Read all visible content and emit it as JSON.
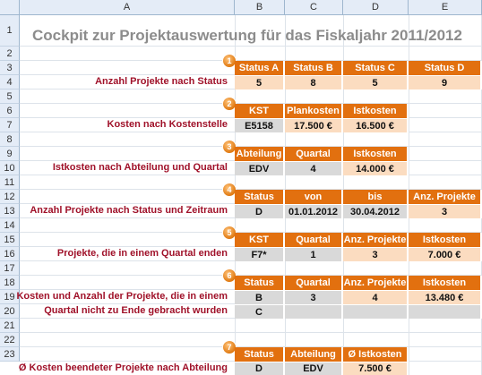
{
  "columns": [
    "A",
    "B",
    "C",
    "D",
    "E"
  ],
  "rows": [
    "1",
    "2",
    "3",
    "4",
    "5",
    "6",
    "7",
    "8",
    "9",
    "10",
    "11",
    "12",
    "13",
    "14",
    "15",
    "16",
    "17",
    "18",
    "19",
    "20",
    "21",
    "22",
    "23"
  ],
  "title": "Cockpit zur Projektauswertung für das Fiskaljahr 2011/2012",
  "sections": [
    {
      "badge": "1",
      "label": "Anzahl  Projekte nach Status",
      "headers": [
        "Status A",
        "Status B",
        "Status C",
        "Status D"
      ],
      "values": [
        "5",
        "8",
        "5",
        "9"
      ]
    },
    {
      "badge": "2",
      "label": "Kosten nach Kostenstelle",
      "headers": [
        "KST",
        "Plankosten",
        "Istkosten"
      ],
      "values": [
        "E5158",
        "17.500 €",
        "16.500 €"
      ]
    },
    {
      "badge": "3",
      "label": "Istkosten nach Abteilung und Quartal",
      "headers": [
        "Abteilung",
        "Quartal",
        "Istkosten"
      ],
      "values": [
        "EDV",
        "4",
        "14.000 €"
      ]
    },
    {
      "badge": "4",
      "label": "Anzahl Projekte nach Status und Zeitraum",
      "headers": [
        "Status",
        "von",
        "bis",
        "Anz. Projekte"
      ],
      "values": [
        "D",
        "01.01.2012",
        "30.04.2012",
        "3"
      ]
    },
    {
      "badge": "5",
      "label": "Projekte, die in einem Quartal enden",
      "headers": [
        "KST",
        "Quartal",
        "Anz. Projekte",
        "Istkosten"
      ],
      "values": [
        "F7*",
        "1",
        "3",
        "7.000 €"
      ]
    },
    {
      "badge": "6",
      "label": "Kosten und Anzahl der Projekte, die in einem",
      "label2": "Quartal nicht zu Ende gebracht wurden",
      "headers": [
        "Status",
        "Quartal",
        "Anz. Projekte",
        "Istkosten"
      ],
      "values": [
        "B",
        "3",
        "4",
        "13.480 €"
      ],
      "values2": [
        "C",
        "",
        "",
        ""
      ]
    },
    {
      "badge": "7",
      "label": "Ø Kosten beendeter Projekte nach Abteilung",
      "headers": [
        "Status",
        "Abteilung",
        "Ø Istkosten"
      ],
      "values": [
        "D",
        "EDV",
        "7.500 €"
      ]
    }
  ]
}
